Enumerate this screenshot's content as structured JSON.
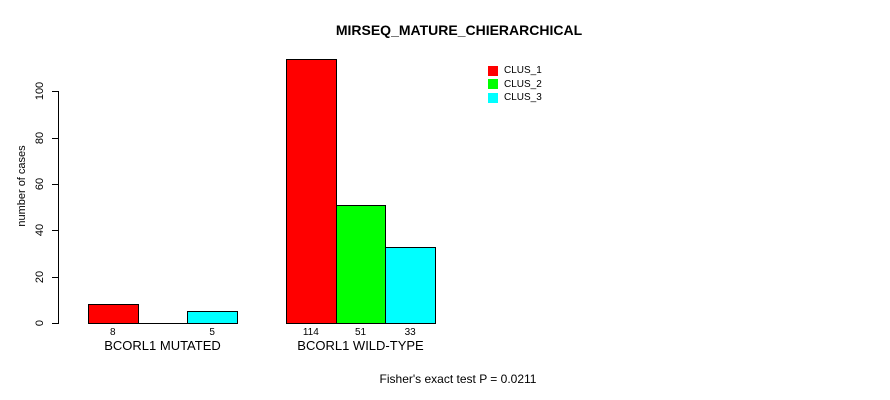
{
  "title": "MIRSEQ_MATURE_CHIERARCHICAL",
  "chart_data": {
    "type": "bar",
    "title": "MIRSEQ_MATURE_CHIERARCHICAL",
    "ylabel": "number of cases",
    "xlabel": "",
    "ylim": [
      0,
      100
    ],
    "yticks": [
      0,
      20,
      40,
      60,
      80,
      100
    ],
    "grid": false,
    "background": "#ffffff",
    "bar_border_color": "#000000",
    "legend_position": "top-right-inside",
    "categories": [
      "BCORL1 MUTATED",
      "BCORL1 WILD-TYPE"
    ],
    "series": [
      {
        "name": "CLUS_1",
        "color": "#ff0000",
        "values": [
          8,
          114
        ]
      },
      {
        "name": "CLUS_2",
        "color": "#00ff00",
        "values": [
          0,
          51
        ]
      },
      {
        "name": "CLUS_3",
        "color": "#00ffff",
        "values": [
          5,
          33
        ]
      }
    ],
    "value_labels": [
      [
        "8",
        "",
        "5"
      ],
      [
        "114",
        "51",
        "33"
      ]
    ],
    "annotation": "Fisher's exact test P = 0.0211"
  },
  "legend": {
    "items": [
      {
        "label": "CLUS_1",
        "color": "#ff0000"
      },
      {
        "label": "CLUS_2",
        "color": "#00ff00"
      },
      {
        "label": "CLUS_3",
        "color": "#00ffff"
      }
    ]
  }
}
